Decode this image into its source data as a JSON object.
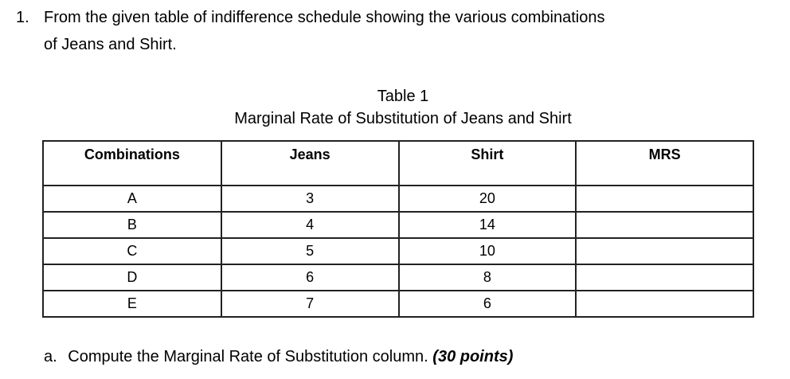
{
  "question": {
    "number": "1.",
    "line1": "From the given table of indifference schedule showing the various combinations",
    "line2": "of Jeans and Shirt."
  },
  "table": {
    "caption": "Table 1",
    "subtitle": "Marginal Rate of Substitution of Jeans and Shirt",
    "headers": [
      "Combinations",
      "Jeans",
      "Shirt",
      "MRS"
    ],
    "rows": [
      [
        "A",
        "3",
        "20",
        ""
      ],
      [
        "B",
        "4",
        "14",
        ""
      ],
      [
        "C",
        "5",
        "10",
        ""
      ],
      [
        "D",
        "6",
        "8",
        ""
      ],
      [
        "E",
        "7",
        "6",
        ""
      ]
    ]
  },
  "subquestion": {
    "letter": "a.",
    "text": "Compute the Marginal Rate of Substitution column.",
    "points": "(30 points)"
  }
}
